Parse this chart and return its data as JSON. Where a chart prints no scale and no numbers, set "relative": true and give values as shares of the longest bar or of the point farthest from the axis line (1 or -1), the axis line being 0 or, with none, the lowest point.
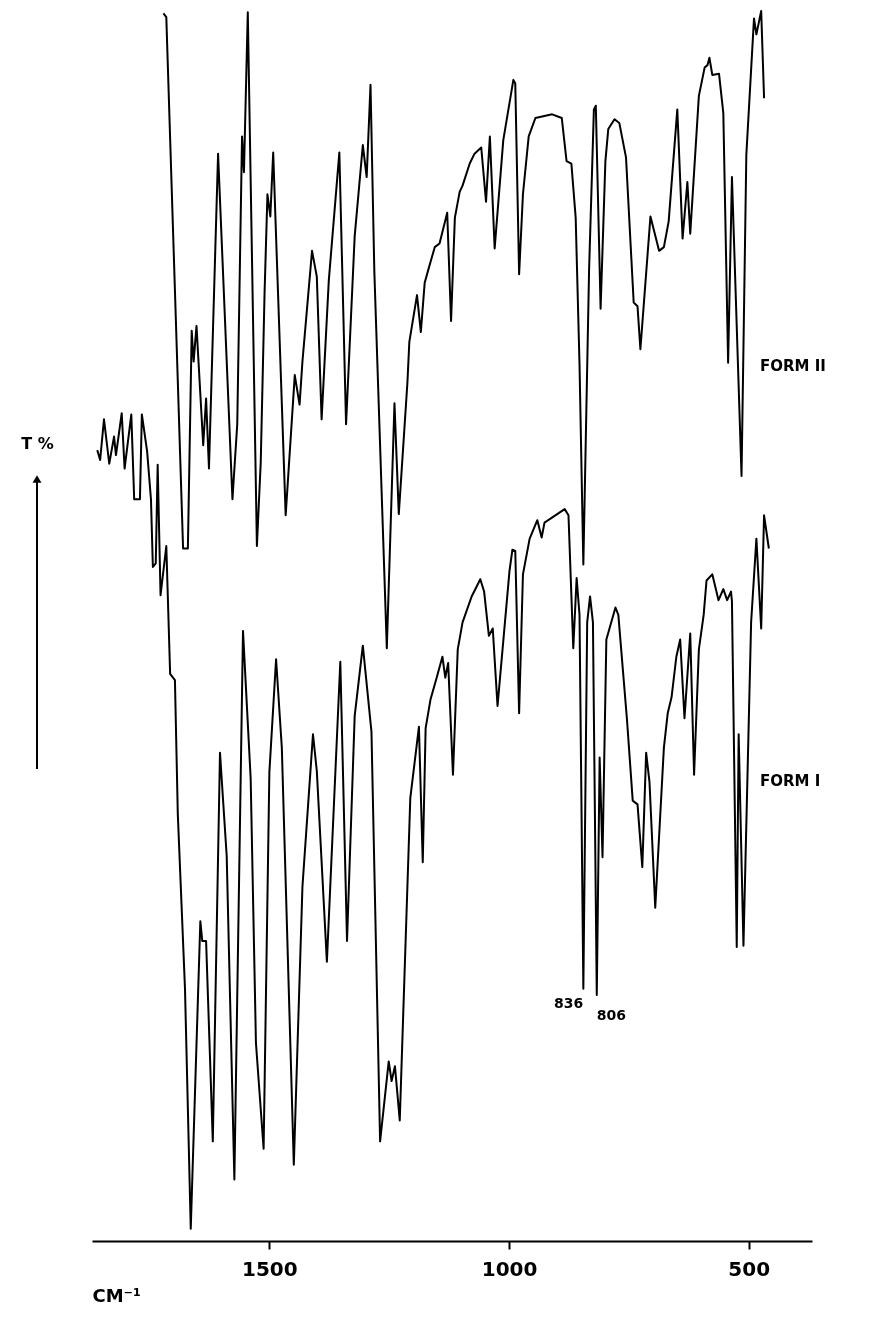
{
  "chart_data": {
    "type": "line",
    "relative": true,
    "xlabel": "CM⁻¹",
    "ylabel": "T %",
    "xlim": [
      1870,
      368
    ],
    "xticks": [
      1500,
      1000,
      500
    ],
    "grid": false,
    "legend": false,
    "marker": "none",
    "line_style": "solid",
    "annotations": [
      {
        "text": "836",
        "x": 845,
        "y": 0.205
      },
      {
        "text": "806",
        "x": 817,
        "y": 0.2
      }
    ],
    "series": [
      {
        "name": "FORM II",
        "color": "#000000",
        "x": [
          1721,
          1715,
          1680,
          1670,
          1662,
          1658,
          1652,
          1638,
          1632,
          1626,
          1607,
          1577,
          1567,
          1557,
          1553,
          1545,
          1526,
          1518,
          1510,
          1504,
          1498,
          1492,
          1466,
          1447,
          1437,
          1431,
          1411,
          1401,
          1391,
          1376,
          1354,
          1340,
          1322,
          1305,
          1297,
          1289,
          1281,
          1255,
          1239,
          1230,
          1212,
          1208,
          1192,
          1184,
          1176,
          1166,
          1155,
          1145,
          1129,
          1121,
          1113,
          1103,
          1097,
          1082,
          1072,
          1058,
          1048,
          1040,
          1030,
          1012,
          991,
          987,
          979,
          971,
          959,
          945,
          910,
          890,
          880,
          870,
          861,
          853,
          845,
          833,
          823,
          819,
          809,
          799,
          793,
          780,
          770,
          756,
          740,
          732,
          726,
          705,
          687,
          677,
          667,
          649,
          638,
          628,
          622,
          604,
          592,
          586,
          582,
          576,
          562,
          553,
          543,
          535,
          515,
          505,
          489,
          484,
          474,
          468
        ],
        "values": [
          0.998,
          0.995,
          0.563,
          0.563,
          0.74,
          0.715,
          0.744,
          0.647,
          0.685,
          0.628,
          0.884,
          0.603,
          0.664,
          0.898,
          0.869,
          0.999,
          0.565,
          0.633,
          0.771,
          0.851,
          0.833,
          0.885,
          0.59,
          0.704,
          0.68,
          0.715,
          0.805,
          0.784,
          0.668,
          0.781,
          0.885,
          0.664,
          0.817,
          0.891,
          0.865,
          0.94,
          0.788,
          0.482,
          0.681,
          0.591,
          0.698,
          0.731,
          0.769,
          0.739,
          0.779,
          0.793,
          0.808,
          0.811,
          0.836,
          0.748,
          0.832,
          0.853,
          0.858,
          0.876,
          0.884,
          0.889,
          0.845,
          0.898,
          0.807,
          0.895,
          0.944,
          0.941,
          0.786,
          0.851,
          0.898,
          0.913,
          0.916,
          0.913,
          0.878,
          0.876,
          0.832,
          0.713,
          0.55,
          0.79,
          0.92,
          0.923,
          0.758,
          0.878,
          0.904,
          0.912,
          0.909,
          0.881,
          0.763,
          0.76,
          0.725,
          0.833,
          0.805,
          0.808,
          0.829,
          0.92,
          0.815,
          0.861,
          0.819,
          0.931,
          0.954,
          0.956,
          0.962,
          0.948,
          0.949,
          0.917,
          0.714,
          0.865,
          0.622,
          0.883,
          0.994,
          0.981,
          1.0,
          0.929
        ]
      },
      {
        "name": "FORM I",
        "color": "#000000",
        "x": [
          1859,
          1853,
          1845,
          1834,
          1824,
          1820,
          1808,
          1802,
          1788,
          1782,
          1770,
          1766,
          1755,
          1747,
          1743,
          1737,
          1733,
          1727,
          1715,
          1707,
          1697,
          1691,
          1676,
          1664,
          1644,
          1640,
          1632,
          1618,
          1603,
          1589,
          1573,
          1555,
          1539,
          1528,
          1512,
          1500,
          1486,
          1474,
          1449,
          1431,
          1409,
          1401,
          1380,
          1352,
          1338,
          1322,
          1305,
          1287,
          1269,
          1251,
          1245,
          1238,
          1228,
          1206,
          1188,
          1180,
          1174,
          1164,
          1151,
          1139,
          1133,
          1127,
          1117,
          1107,
          1097,
          1078,
          1060,
          1052,
          1042,
          1034,
          1024,
          999,
          993,
          987,
          979,
          971,
          957,
          941,
          932,
          926,
          884,
          876,
          866,
          859,
          853,
          845,
          837,
          831,
          825,
          817,
          811,
          805,
          797,
          778,
          772,
          754,
          742,
          732,
          722,
          714,
          707,
          695,
          677,
          669,
          661,
          651,
          643,
          634,
          622,
          614,
          604,
          594,
          588,
          576,
          563,
          553,
          545,
          537,
          535,
          525,
          521,
          511,
          495,
          484,
          474,
          468,
          458
        ],
        "values": [
          0.643,
          0.635,
          0.668,
          0.632,
          0.654,
          0.639,
          0.673,
          0.628,
          0.672,
          0.603,
          0.603,
          0.672,
          0.642,
          0.603,
          0.548,
          0.551,
          0.631,
          0.525,
          0.565,
          0.461,
          0.456,
          0.347,
          0.205,
          0.01,
          0.26,
          0.244,
          0.244,
          0.081,
          0.397,
          0.313,
          0.05,
          0.496,
          0.376,
          0.161,
          0.075,
          0.381,
          0.473,
          0.401,
          0.062,
          0.288,
          0.412,
          0.382,
          0.227,
          0.471,
          0.244,
          0.427,
          0.484,
          0.414,
          0.081,
          0.146,
          0.13,
          0.142,
          0.098,
          0.36,
          0.418,
          0.308,
          0.417,
          0.44,
          0.458,
          0.475,
          0.458,
          0.47,
          0.379,
          0.481,
          0.503,
          0.524,
          0.538,
          0.528,
          0.492,
          0.498,
          0.435,
          0.545,
          0.562,
          0.561,
          0.429,
          0.542,
          0.571,
          0.586,
          0.572,
          0.584,
          0.595,
          0.59,
          0.482,
          0.539,
          0.509,
          0.205,
          0.503,
          0.524,
          0.503,
          0.2,
          0.393,
          0.312,
          0.489,
          0.515,
          0.509,
          0.424,
          0.358,
          0.355,
          0.304,
          0.397,
          0.373,
          0.271,
          0.401,
          0.429,
          0.442,
          0.475,
          0.489,
          0.425,
          0.494,
          0.379,
          0.481,
          0.509,
          0.537,
          0.542,
          0.521,
          0.53,
          0.521,
          0.528,
          0.52,
          0.239,
          0.412,
          0.24,
          0.503,
          0.571,
          0.498,
          0.59,
          0.563
        ]
      }
    ]
  }
}
